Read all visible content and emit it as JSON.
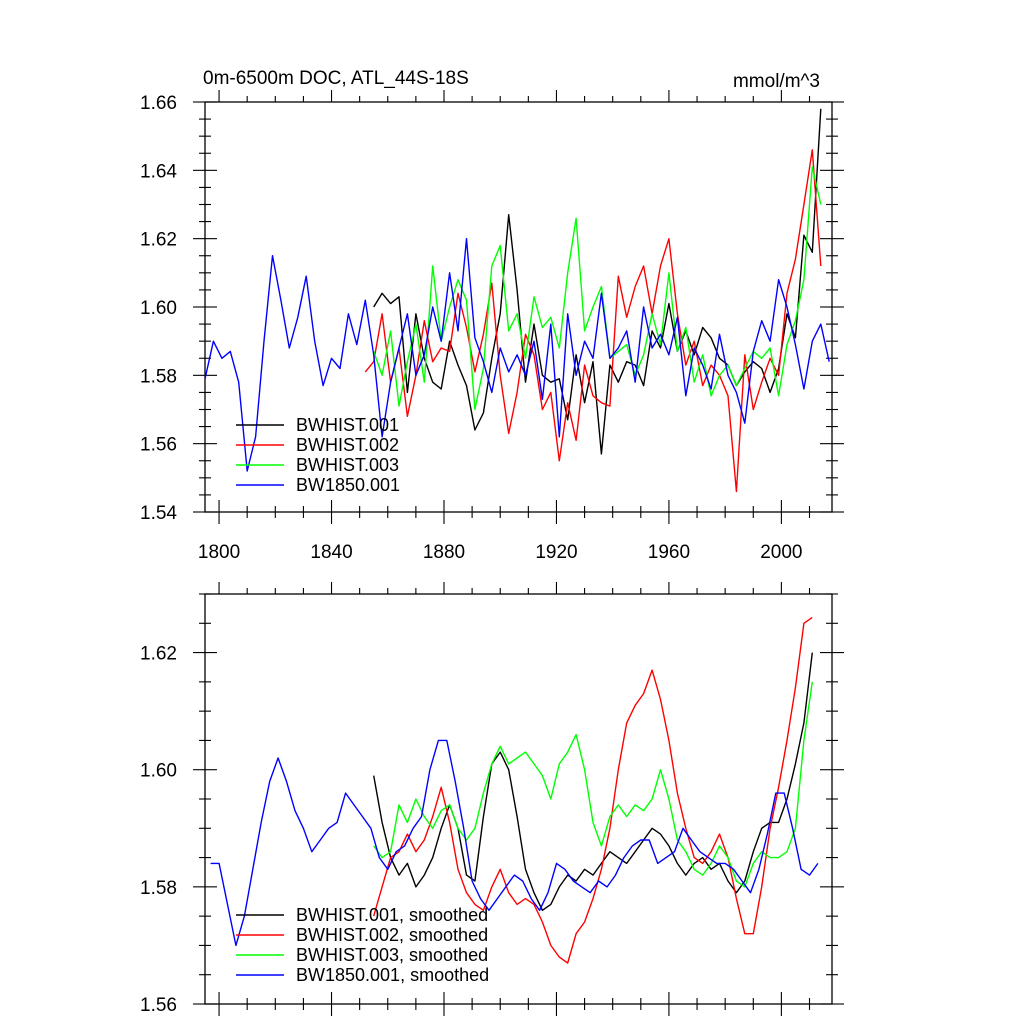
{
  "chart_data": [
    {
      "type": "line",
      "title": "0m-6500m DOC, ATL_44S-18S",
      "units": "mmol/m^3",
      "xlabel": "",
      "ylabel": "",
      "xlim": [
        1795,
        2018
      ],
      "ylim": [
        1.54,
        1.66
      ],
      "xticks": [
        1800,
        1840,
        1880,
        1920,
        1960,
        2000
      ],
      "xtick_labels": [
        "1800",
        "1840",
        "1880",
        "1920",
        "1960",
        "2000"
      ],
      "yticks": [
        1.54,
        1.56,
        1.58,
        1.6,
        1.62,
        1.64,
        1.66
      ],
      "ytick_labels": [
        "1.54",
        "1.56",
        "1.58",
        "1.60",
        "1.62",
        "1.64",
        "1.66"
      ],
      "legend_position": "bottom-left",
      "series": [
        {
          "name": "BWHIST.001",
          "color": "#000000",
          "x": [
            1855,
            1858,
            1861,
            1864,
            1867,
            1870,
            1873,
            1876,
            1879,
            1882,
            1885,
            1888,
            1891,
            1894,
            1897,
            1900,
            1903,
            1906,
            1909,
            1912,
            1915,
            1918,
            1921,
            1924,
            1927,
            1930,
            1933,
            1936,
            1939,
            1942,
            1945,
            1948,
            1951,
            1954,
            1957,
            1960,
            1963,
            1966,
            1969,
            1972,
            1975,
            1978,
            1981,
            1984,
            1987,
            1990,
            1993,
            1996,
            1999,
            2002,
            2005,
            2008,
            2011,
            2014
          ],
          "values": [
            1.6,
            1.604,
            1.601,
            1.603,
            1.575,
            1.598,
            1.585,
            1.578,
            1.576,
            1.59,
            1.583,
            1.577,
            1.564,
            1.569,
            1.585,
            1.598,
            1.627,
            1.605,
            1.578,
            1.595,
            1.58,
            1.578,
            1.579,
            1.567,
            1.586,
            1.572,
            1.584,
            1.557,
            1.583,
            1.578,
            1.584,
            1.583,
            1.577,
            1.593,
            1.588,
            1.601,
            1.587,
            1.593,
            1.586,
            1.594,
            1.591,
            1.585,
            1.583,
            1.577,
            1.581,
            1.584,
            1.582,
            1.575,
            1.582,
            1.598,
            1.591,
            1.621,
            1.616,
            1.658
          ]
        },
        {
          "name": "BWHIST.002",
          "color": "#ff0000",
          "x": [
            1852,
            1855,
            1858,
            1861,
            1864,
            1867,
            1870,
            1873,
            1876,
            1879,
            1882,
            1885,
            1888,
            1891,
            1894,
            1897,
            1900,
            1903,
            1906,
            1909,
            1912,
            1915,
            1918,
            1921,
            1924,
            1927,
            1930,
            1933,
            1936,
            1939,
            1942,
            1945,
            1948,
            1951,
            1954,
            1957,
            1960,
            1963,
            1966,
            1969,
            1972,
            1975,
            1978,
            1981,
            1984,
            1987,
            1990,
            1993,
            1996,
            1999,
            2002,
            2005,
            2008,
            2011,
            2014
          ],
          "values": [
            1.581,
            1.584,
            1.598,
            1.578,
            1.588,
            1.568,
            1.58,
            1.596,
            1.584,
            1.588,
            1.587,
            1.604,
            1.594,
            1.581,
            1.592,
            1.607,
            1.58,
            1.563,
            1.575,
            1.592,
            1.586,
            1.57,
            1.575,
            1.555,
            1.572,
            1.561,
            1.583,
            1.574,
            1.572,
            1.571,
            1.609,
            1.597,
            1.606,
            1.612,
            1.598,
            1.612,
            1.62,
            1.598,
            1.583,
            1.59,
            1.577,
            1.583,
            1.58,
            1.574,
            1.546,
            1.586,
            1.57,
            1.578,
            1.585,
            1.58,
            1.604,
            1.614,
            1.63,
            1.646,
            1.612
          ]
        },
        {
          "name": "BWHIST.003",
          "color": "#00ff00",
          "x": [
            1855,
            1858,
            1861,
            1864,
            1867,
            1870,
            1873,
            1876,
            1879,
            1882,
            1885,
            1888,
            1891,
            1894,
            1897,
            1900,
            1903,
            1906,
            1909,
            1912,
            1915,
            1918,
            1921,
            1924,
            1927,
            1930,
            1933,
            1936,
            1939,
            1942,
            1945,
            1948,
            1951,
            1954,
            1957,
            1960,
            1963,
            1966,
            1969,
            1972,
            1975,
            1978,
            1981,
            1984,
            1987,
            1990,
            1993,
            1996,
            1999,
            2002,
            2005,
            2008,
            2011,
            2014
          ],
          "values": [
            1.587,
            1.58,
            1.593,
            1.571,
            1.584,
            1.595,
            1.578,
            1.612,
            1.59,
            1.6,
            1.608,
            1.602,
            1.57,
            1.582,
            1.612,
            1.618,
            1.593,
            1.598,
            1.585,
            1.603,
            1.594,
            1.597,
            1.588,
            1.61,
            1.626,
            1.593,
            1.6,
            1.606,
            1.585,
            1.587,
            1.589,
            1.58,
            1.586,
            1.598,
            1.589,
            1.61,
            1.587,
            1.594,
            1.578,
            1.586,
            1.574,
            1.58,
            1.583,
            1.577,
            1.582,
            1.587,
            1.585,
            1.588,
            1.574,
            1.589,
            1.596,
            1.608,
            1.641,
            1.63
          ]
        },
        {
          "name": "BW1850.001",
          "color": "#0000ff",
          "x": [
            1795,
            1798,
            1801,
            1804,
            1807,
            1810,
            1813,
            1816,
            1819,
            1822,
            1825,
            1828,
            1831,
            1834,
            1837,
            1840,
            1843,
            1846,
            1849,
            1852,
            1855,
            1858,
            1861,
            1864,
            1867,
            1870,
            1873,
            1876,
            1879,
            1882,
            1885,
            1888,
            1891,
            1894,
            1897,
            1900,
            1903,
            1906,
            1909,
            1912,
            1915,
            1918,
            1921,
            1924,
            1927,
            1930,
            1933,
            1936,
            1939,
            1942,
            1945,
            1948,
            1951,
            1954,
            1957,
            1960,
            1963,
            1966,
            1969,
            1972,
            1975,
            1978,
            1981,
            1984,
            1987,
            1990,
            1993,
            1996,
            1999,
            2002,
            2005,
            2008,
            2011,
            2014,
            2017
          ],
          "values": [
            1.579,
            1.59,
            1.585,
            1.587,
            1.578,
            1.552,
            1.562,
            1.59,
            1.615,
            1.602,
            1.588,
            1.597,
            1.609,
            1.59,
            1.577,
            1.585,
            1.582,
            1.598,
            1.589,
            1.602,
            1.586,
            1.562,
            1.578,
            1.588,
            1.598,
            1.58,
            1.586,
            1.6,
            1.59,
            1.61,
            1.593,
            1.62,
            1.591,
            1.584,
            1.575,
            1.588,
            1.581,
            1.586,
            1.58,
            1.59,
            1.573,
            1.595,
            1.562,
            1.598,
            1.58,
            1.59,
            1.585,
            1.604,
            1.585,
            1.588,
            1.593,
            1.578,
            1.6,
            1.588,
            1.592,
            1.586,
            1.597,
            1.574,
            1.588,
            1.583,
            1.576,
            1.592,
            1.58,
            1.575,
            1.566,
            1.587,
            1.596,
            1.59,
            1.608,
            1.6,
            1.589,
            1.576,
            1.59,
            1.595,
            1.584
          ]
        }
      ]
    },
    {
      "type": "line",
      "title": "",
      "xlabel": "",
      "ylabel": "",
      "xlim": [
        1795,
        2018
      ],
      "ylim": [
        1.56,
        1.63
      ],
      "xticks": [
        1800,
        1840,
        1880,
        1920,
        1960,
        2000
      ],
      "yticks": [
        1.56,
        1.58,
        1.6,
        1.62
      ],
      "ytick_labels": [
        "1.56",
        "1.58",
        "1.60",
        "1.62"
      ],
      "legend_position": "bottom-left",
      "series": [
        {
          "name": "BWHIST.001, smoothed",
          "color": "#000000",
          "x": [
            1855,
            1858,
            1861,
            1864,
            1867,
            1870,
            1873,
            1876,
            1879,
            1882,
            1885,
            1888,
            1891,
            1894,
            1897,
            1900,
            1903,
            1906,
            1909,
            1912,
            1915,
            1918,
            1921,
            1924,
            1927,
            1930,
            1933,
            1936,
            1939,
            1942,
            1945,
            1948,
            1951,
            1954,
            1957,
            1960,
            1963,
            1966,
            1969,
            1972,
            1975,
            1978,
            1981,
            1984,
            1987,
            1990,
            1993,
            1996,
            1999,
            2002,
            2005,
            2008,
            2011
          ],
          "values": [
            1.599,
            1.591,
            1.585,
            1.582,
            1.584,
            1.58,
            1.582,
            1.585,
            1.59,
            1.594,
            1.59,
            1.582,
            1.581,
            1.592,
            1.601,
            1.603,
            1.6,
            1.592,
            1.583,
            1.579,
            1.576,
            1.577,
            1.58,
            1.582,
            1.581,
            1.583,
            1.582,
            1.584,
            1.586,
            1.585,
            1.584,
            1.586,
            1.588,
            1.59,
            1.589,
            1.587,
            1.584,
            1.582,
            1.584,
            1.585,
            1.583,
            1.584,
            1.581,
            1.579,
            1.581,
            1.586,
            1.59,
            1.591,
            1.591,
            1.595,
            1.601,
            1.608,
            1.62
          ]
        },
        {
          "name": "BWHIST.002, smoothed",
          "color": "#ff0000",
          "x": [
            1855,
            1858,
            1861,
            1864,
            1867,
            1870,
            1873,
            1876,
            1879,
            1882,
            1885,
            1888,
            1891,
            1894,
            1897,
            1900,
            1903,
            1906,
            1909,
            1912,
            1915,
            1918,
            1921,
            1924,
            1927,
            1930,
            1933,
            1936,
            1939,
            1942,
            1945,
            1948,
            1951,
            1954,
            1957,
            1960,
            1963,
            1966,
            1969,
            1972,
            1975,
            1978,
            1981,
            1984,
            1987,
            1990,
            1993,
            1996,
            1999,
            2002,
            2005,
            2008,
            2011
          ],
          "values": [
            1.575,
            1.58,
            1.585,
            1.586,
            1.589,
            1.586,
            1.588,
            1.592,
            1.597,
            1.591,
            1.583,
            1.579,
            1.577,
            1.576,
            1.58,
            1.583,
            1.579,
            1.577,
            1.578,
            1.577,
            1.574,
            1.57,
            1.568,
            1.567,
            1.572,
            1.574,
            1.578,
            1.583,
            1.59,
            1.6,
            1.608,
            1.611,
            1.613,
            1.617,
            1.612,
            1.605,
            1.596,
            1.59,
            1.585,
            1.584,
            1.586,
            1.589,
            1.585,
            1.578,
            1.572,
            1.572,
            1.58,
            1.59,
            1.597,
            1.605,
            1.614,
            1.625,
            1.626
          ]
        },
        {
          "name": "BWHIST.003, smoothed",
          "color": "#00ff00",
          "x": [
            1855,
            1858,
            1861,
            1864,
            1867,
            1870,
            1873,
            1876,
            1879,
            1882,
            1885,
            1888,
            1891,
            1894,
            1897,
            1900,
            1903,
            1906,
            1909,
            1912,
            1915,
            1918,
            1921,
            1924,
            1927,
            1930,
            1933,
            1936,
            1939,
            1942,
            1945,
            1948,
            1951,
            1954,
            1957,
            1960,
            1963,
            1966,
            1969,
            1972,
            1975,
            1978,
            1981,
            1984,
            1987,
            1990,
            1993,
            1996,
            1999,
            2002,
            2005,
            2008,
            2011
          ],
          "values": [
            1.587,
            1.585,
            1.586,
            1.594,
            1.591,
            1.595,
            1.592,
            1.59,
            1.593,
            1.594,
            1.59,
            1.588,
            1.59,
            1.596,
            1.601,
            1.604,
            1.601,
            1.602,
            1.603,
            1.601,
            1.599,
            1.595,
            1.601,
            1.603,
            1.606,
            1.6,
            1.591,
            1.587,
            1.592,
            1.594,
            1.592,
            1.594,
            1.593,
            1.595,
            1.6,
            1.595,
            1.588,
            1.586,
            1.583,
            1.582,
            1.584,
            1.587,
            1.585,
            1.581,
            1.58,
            1.584,
            1.586,
            1.585,
            1.585,
            1.586,
            1.59,
            1.605,
            1.615
          ]
        },
        {
          "name": "BW1850.001, smoothed",
          "color": "#0000ff",
          "x": [
            1797,
            1800,
            1803,
            1806,
            1809,
            1812,
            1815,
            1818,
            1821,
            1824,
            1827,
            1830,
            1833,
            1836,
            1839,
            1842,
            1845,
            1848,
            1851,
            1854,
            1857,
            1860,
            1863,
            1866,
            1869,
            1872,
            1875,
            1878,
            1881,
            1884,
            1887,
            1890,
            1893,
            1896,
            1899,
            1902,
            1905,
            1908,
            1911,
            1914,
            1917,
            1920,
            1923,
            1926,
            1929,
            1932,
            1935,
            1938,
            1941,
            1944,
            1947,
            1950,
            1953,
            1956,
            1959,
            1962,
            1965,
            1968,
            1971,
            1974,
            1977,
            1980,
            1983,
            1986,
            1989,
            1992,
            1995,
            1998,
            2001,
            2004,
            2007,
            2010,
            2013
          ],
          "values": [
            1.584,
            1.584,
            1.577,
            1.57,
            1.575,
            1.583,
            1.591,
            1.598,
            1.602,
            1.598,
            1.593,
            1.59,
            1.586,
            1.588,
            1.59,
            1.591,
            1.596,
            1.594,
            1.592,
            1.59,
            1.585,
            1.583,
            1.586,
            1.587,
            1.59,
            1.592,
            1.6,
            1.605,
            1.605,
            1.598,
            1.59,
            1.581,
            1.578,
            1.576,
            1.578,
            1.58,
            1.582,
            1.581,
            1.578,
            1.576,
            1.579,
            1.584,
            1.583,
            1.581,
            1.58,
            1.579,
            1.581,
            1.58,
            1.582,
            1.585,
            1.587,
            1.588,
            1.588,
            1.584,
            1.585,
            1.586,
            1.59,
            1.588,
            1.586,
            1.585,
            1.584,
            1.584,
            1.583,
            1.581,
            1.579,
            1.583,
            1.589,
            1.596,
            1.596,
            1.59,
            1.583,
            1.582,
            1.584
          ]
        }
      ]
    }
  ]
}
